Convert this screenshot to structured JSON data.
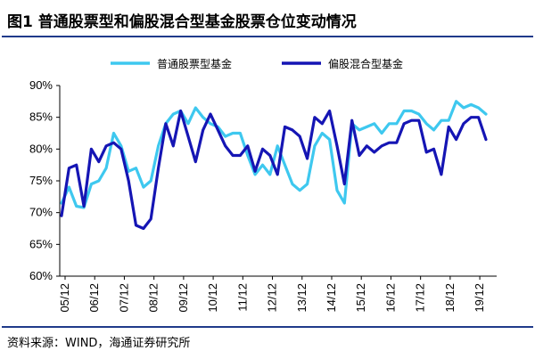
{
  "header": {
    "title": "图1   普通股票型和偏股混合型基金股票仓位变动情况"
  },
  "footer": {
    "source": "资料来源：WIND，海通证券研究所"
  },
  "chart_data": {
    "type": "line",
    "ylim": [
      60,
      90
    ],
    "y_ticks": [
      "60%",
      "65%",
      "70%",
      "75%",
      "80%",
      "85%",
      "90%"
    ],
    "x_ticks": [
      "05/12",
      "06/12",
      "07/12",
      "08/12",
      "09/12",
      "10/12",
      "11/12",
      "12/12",
      "13/12",
      "14/12",
      "15/12",
      "16/12",
      "17/12",
      "18/12",
      "19/12"
    ],
    "legend_position": "top",
    "series": [
      {
        "name": "普通股票型基金",
        "color": "#3ec8ef",
        "values": [
          71.5,
          74,
          71,
          70.8,
          74.5,
          75,
          77,
          82.5,
          80.5,
          76.5,
          77,
          74,
          75,
          80.5,
          84,
          85.5,
          86,
          84,
          86.5,
          85,
          84,
          83.5,
          82,
          82.5,
          82.5,
          79,
          76,
          77.5,
          76,
          80.5,
          77.5,
          74.5,
          73.5,
          74.5,
          80.5,
          82.5,
          81.5,
          73.5,
          71.5,
          84,
          83,
          83.5,
          84,
          82.5,
          84,
          84,
          86,
          86,
          85.5,
          84,
          83,
          84.5,
          84.5,
          87.5,
          86.5,
          87,
          86.5,
          85.5
        ]
      },
      {
        "name": "偏股混合型基金",
        "color": "#1515b4",
        "values": [
          69.5,
          77,
          77.5,
          71,
          80,
          78,
          80.5,
          81,
          80,
          75,
          68,
          67.5,
          69,
          77,
          84,
          80.5,
          86,
          82,
          78,
          83,
          85.5,
          83,
          80.5,
          79,
          79,
          80.5,
          76.5,
          80,
          79,
          76,
          83.5,
          83,
          82,
          78.5,
          85,
          84,
          86,
          80.5,
          74.5,
          84.5,
          79,
          80.5,
          79.5,
          80.5,
          81,
          81,
          84,
          84.5,
          84.5,
          79.5,
          80,
          76,
          83.5,
          81.5,
          84,
          85,
          85,
          81.5
        ]
      }
    ]
  }
}
